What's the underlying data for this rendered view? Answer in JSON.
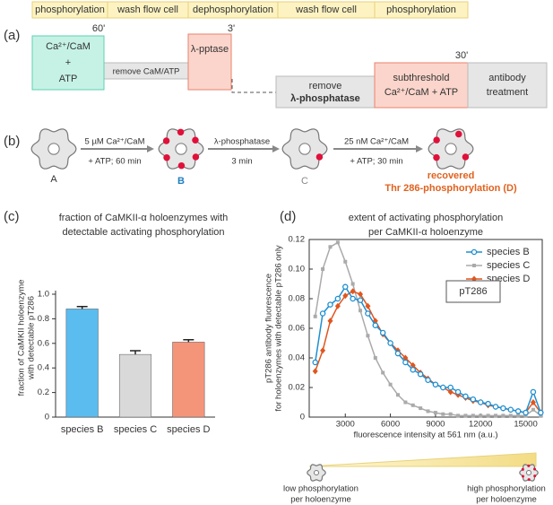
{
  "panel_a": {
    "label": "(a)",
    "phases": [
      "phosphorylation",
      "wash flow cell",
      "dephosphorylation",
      "wash flow cell",
      "phosphorylation"
    ],
    "box1": [
      "Ca²⁺/CaM",
      "+",
      "ATP"
    ],
    "time1": "60'",
    "box2": "remove CaM/ATP",
    "box3": "λ-pptase",
    "time3": "3'",
    "box4": [
      "remove",
      "λ-phosphatase"
    ],
    "box5": [
      "subthreshold",
      "Ca²⁺/CaM + ATP"
    ],
    "time5": "30'",
    "box6": [
      "antibody",
      "treatment"
    ]
  },
  "panel_b": {
    "label": "(b)",
    "states": [
      "A",
      "B",
      "C"
    ],
    "final": [
      "recovered",
      "Thr 286-phosphorylation (D)"
    ],
    "step1": [
      "5 µM Ca²⁺/CaM",
      "+ ATP; 60 min"
    ],
    "step2": [
      "λ-phosphatase",
      "3 min"
    ],
    "step3": [
      "25 nM Ca²⁺/CaM",
      "+ ATP; 30 min"
    ]
  },
  "chart_data": [
    {
      "type": "bar",
      "panel": "(c)",
      "title": [
        "fraction of CaMKII-α holoenzymes with",
        "detectable activating phosphorylation"
      ],
      "ylabel": [
        "fraction of CaMKII holoenzyme",
        "with detectable pT286"
      ],
      "categories": [
        "species B",
        "species C",
        "species D"
      ],
      "values": [
        0.88,
        0.51,
        0.61
      ],
      "errors": [
        0.02,
        0.03,
        0.02
      ],
      "colors": [
        "#5bbcef",
        "#d9d9d9",
        "#f4957a"
      ],
      "ylim": [
        0,
        1
      ],
      "yticks": [
        0,
        0.2,
        0.4,
        0.6,
        0.8,
        {
          "value": 1,
          "label": "1.0"
        }
      ]
    },
    {
      "type": "line",
      "panel": "(d)",
      "title": [
        "extent of activating phosphorylation",
        "per CaMKII-α holoenzyme"
      ],
      "ylabel": [
        "pT286 antibody fluorescence",
        "for holoenzymes with detectable pT286 only"
      ],
      "xlabel": "fluorescence intensity at 561 nm (a.u.)",
      "annotation": "pT286",
      "x": [
        1000,
        1500,
        2000,
        2500,
        3000,
        3500,
        4000,
        4500,
        5000,
        5500,
        6000,
        6500,
        7000,
        7500,
        8000,
        8500,
        9000,
        9500,
        10000,
        10500,
        11000,
        11500,
        12000,
        12500,
        13000,
        13500,
        14000,
        14500,
        15000,
        15500,
        16000
      ],
      "series": [
        {
          "name": "species B",
          "color": "#1f8fd0",
          "marker": "circle",
          "values": [
            0.037,
            0.07,
            0.076,
            0.08,
            0.088,
            0.08,
            0.079,
            0.07,
            0.062,
            0.057,
            0.05,
            0.043,
            0.037,
            0.032,
            0.029,
            0.025,
            0.022,
            0.02,
            0.02,
            0.017,
            0.014,
            0.012,
            0.01,
            0.009,
            0.007,
            0.006,
            0.005,
            0.004,
            0.003,
            0.017,
            0.003
          ]
        },
        {
          "name": "species C",
          "color": "#aaaaaa",
          "marker": "square",
          "values": [
            0.068,
            0.1,
            0.115,
            0.118,
            0.105,
            0.09,
            0.072,
            0.055,
            0.04,
            0.03,
            0.022,
            0.015,
            0.01,
            0.008,
            0.006,
            0.004,
            0.003,
            0.002,
            0.002,
            0.001,
            0.001,
            0.001,
            0.001,
            0.001,
            0.001,
            0.001,
            0.001,
            0.001,
            0.001,
            0.005,
            0.001
          ]
        },
        {
          "name": "species D",
          "color": "#e0561f",
          "marker": "diamond",
          "values": [
            0.031,
            0.045,
            0.065,
            0.075,
            0.082,
            0.085,
            0.083,
            0.075,
            0.065,
            0.056,
            0.05,
            0.045,
            0.04,
            0.035,
            0.03,
            0.026,
            0.022,
            0.02,
            0.017,
            0.015,
            0.013,
            0.011,
            0.01,
            0.008,
            0.007,
            0.006,
            0.005,
            0.004,
            0.003,
            0.01,
            0.003
          ]
        }
      ],
      "xlim": [
        600,
        16100
      ],
      "xticks": [
        3000,
        6000,
        9000,
        12000,
        15000
      ],
      "ylim": [
        0,
        0.12
      ],
      "yticks": [
        0,
        0.02,
        0.04,
        0.06,
        0.08,
        {
          "value": 0.1,
          "label": "0.10"
        },
        0.12
      ],
      "legend": "top-right"
    }
  ],
  "bottom": {
    "low": [
      "low phosphorylation",
      "per holoenzyme"
    ],
    "high": [
      "high phosphorylation",
      "per holoenzyme"
    ]
  }
}
